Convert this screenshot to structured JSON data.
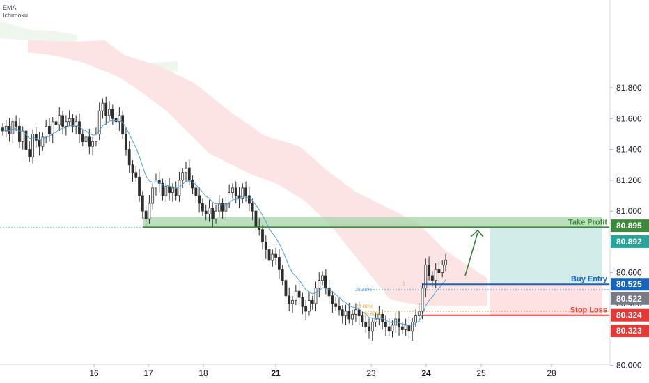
{
  "indicators": [
    "EMA",
    "Ichimoku"
  ],
  "colors": {
    "up": "#26a69a",
    "down": "#ef5350",
    "candle": "#2d2d2d",
    "ema": "#4a9fd8",
    "cloud_red": "#fce4e4",
    "cloud_green": "#eef6ee",
    "take_profit": "#3b8b3b",
    "buy_entry": "#1565c0",
    "stop_loss": "#e53935",
    "price_gray": "#787b86"
  },
  "chart_data": {
    "type": "candlestick",
    "title": "",
    "ylim": [
      80.0,
      81.9
    ],
    "y_ticks": [
      "81.800",
      "81.600",
      "81.400",
      "81.200",
      "81.000",
      "80.600",
      "80.400",
      "80.200",
      "80.000"
    ],
    "y_tick_values": [
      81.8,
      81.6,
      81.4,
      81.2,
      81.0,
      80.6,
      80.4,
      80.2,
      80.0
    ],
    "x_ticks": [
      {
        "label": "16",
        "bold": false
      },
      {
        "label": "17",
        "bold": false
      },
      {
        "label": "18",
        "bold": false
      },
      {
        "label": "21",
        "bold": true
      },
      {
        "label": "22",
        "bold": false
      },
      {
        "label": "23",
        "bold": false
      },
      {
        "label": "24",
        "bold": true
      },
      {
        "label": "25",
        "bold": false
      },
      {
        "label": "28",
        "bold": false
      }
    ],
    "levels": [
      {
        "name": "Take Profit",
        "value": 80.895,
        "label": "80.895",
        "color": "#3b8b3b"
      },
      {
        "name": "Buy Entry",
        "value": 80.525,
        "label": "80.525",
        "color": "#1565c0"
      },
      {
        "name": "Stop Loss",
        "value": 80.324,
        "label": "80.324",
        "color": "#e53935"
      }
    ],
    "price_tags": [
      {
        "label": "80.892",
        "value": 80.892,
        "color": "#26a69a"
      },
      {
        "label": "80.522",
        "value": 80.522,
        "color": "#787b86"
      },
      {
        "label": "80.323",
        "value": 80.323,
        "color": "#e53935"
      }
    ],
    "fib_labels": [
      "38.20%",
      "1",
      "61.80%",
      "78.60%"
    ],
    "closes": [
      81.52,
      81.55,
      81.5,
      81.58,
      81.55,
      81.45,
      81.52,
      81.4,
      81.35,
      81.5,
      81.46,
      81.42,
      81.48,
      81.55,
      81.5,
      81.58,
      81.56,
      81.62,
      81.55,
      81.58,
      81.6,
      81.55,
      81.58,
      81.5,
      81.45,
      81.48,
      81.42,
      81.45,
      81.5,
      81.65,
      81.7,
      81.62,
      81.66,
      81.6,
      81.58,
      81.62,
      81.5,
      81.4,
      81.3,
      81.25,
      81.22,
      81.1,
      81.0,
      80.95,
      81.05,
      81.15,
      81.2,
      81.18,
      81.1,
      81.16,
      81.12,
      81.15,
      81.1,
      81.2,
      81.25,
      81.28,
      81.2,
      81.15,
      81.1,
      81.05,
      81.0,
      80.98,
      81.02,
      80.95,
      81.0,
      81.05,
      81.0,
      81.05,
      81.12,
      81.15,
      81.1,
      81.08,
      81.15,
      81.1,
      81.05,
      81.0,
      80.9,
      80.88,
      80.8,
      80.75,
      80.68,
      80.72,
      80.7,
      80.62,
      80.55,
      80.45,
      80.4,
      80.42,
      80.48,
      80.44,
      80.38,
      80.35,
      80.42,
      80.4,
      80.5,
      80.55,
      80.58,
      80.5,
      80.45,
      80.4,
      80.38,
      80.36,
      80.32,
      80.35,
      80.3,
      80.33,
      80.36,
      80.32,
      80.28,
      80.25,
      80.22,
      80.28,
      80.3,
      80.33,
      80.28,
      80.25,
      80.22,
      80.26,
      80.3,
      80.25,
      80.23,
      80.26,
      80.22,
      80.28,
      80.32,
      80.35,
      80.5,
      80.65,
      80.58,
      80.55,
      80.62,
      80.6,
      80.65,
      80.68
    ]
  }
}
